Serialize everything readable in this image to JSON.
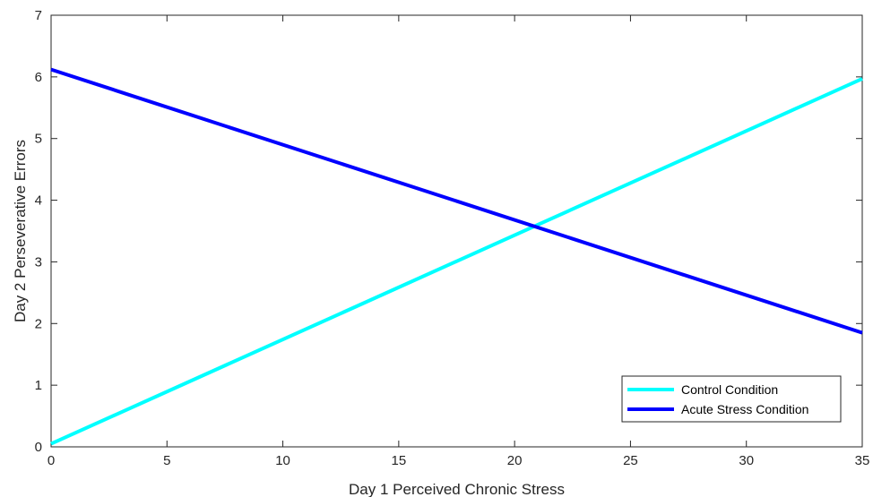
{
  "chart_data": {
    "type": "line",
    "xlabel": "Day 1 Perceived Chronic Stress",
    "ylabel": "Day 2 Perseverative Errors",
    "xlim": [
      0,
      35
    ],
    "ylim": [
      0,
      7
    ],
    "xticks": [
      0,
      5,
      10,
      15,
      20,
      25,
      30,
      35
    ],
    "yticks": [
      0,
      1,
      2,
      3,
      4,
      5,
      6,
      7
    ],
    "grid": false,
    "legend_position": "bottom-right",
    "series": [
      {
        "name": "Control Condition",
        "color": "#00ffff",
        "x": [
          0,
          35
        ],
        "y": [
          0.05,
          5.97
        ]
      },
      {
        "name": "Acute Stress Condition",
        "color": "#0000ff",
        "x": [
          0,
          35
        ],
        "y": [
          6.12,
          1.85
        ]
      }
    ]
  }
}
